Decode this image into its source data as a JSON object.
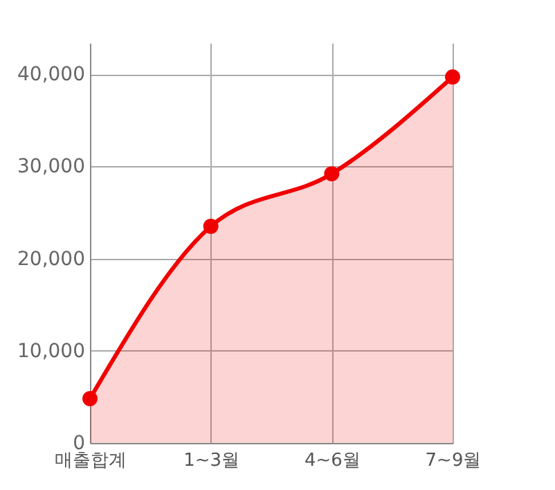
{
  "chart_data": {
    "type": "area",
    "categories": [
      "매출합계",
      "1~3월",
      "4~6월",
      "7~9월"
    ],
    "series": [
      {
        "color": "#f00000",
        "values": [
          4800,
          23500,
          29200,
          39700
        ]
      }
    ],
    "ylim": [
      0,
      43400
    ],
    "yticks": [
      0,
      {
        "value": 10000,
        "label": "10,000"
      },
      {
        "value": 20000,
        "label": "20,000"
      },
      {
        "value": 30000,
        "label": "30,000"
      },
      {
        "value": 40000,
        "label": "40,000"
      }
    ],
    "grid": true,
    "marker": "circle",
    "line_style": "solid"
  }
}
